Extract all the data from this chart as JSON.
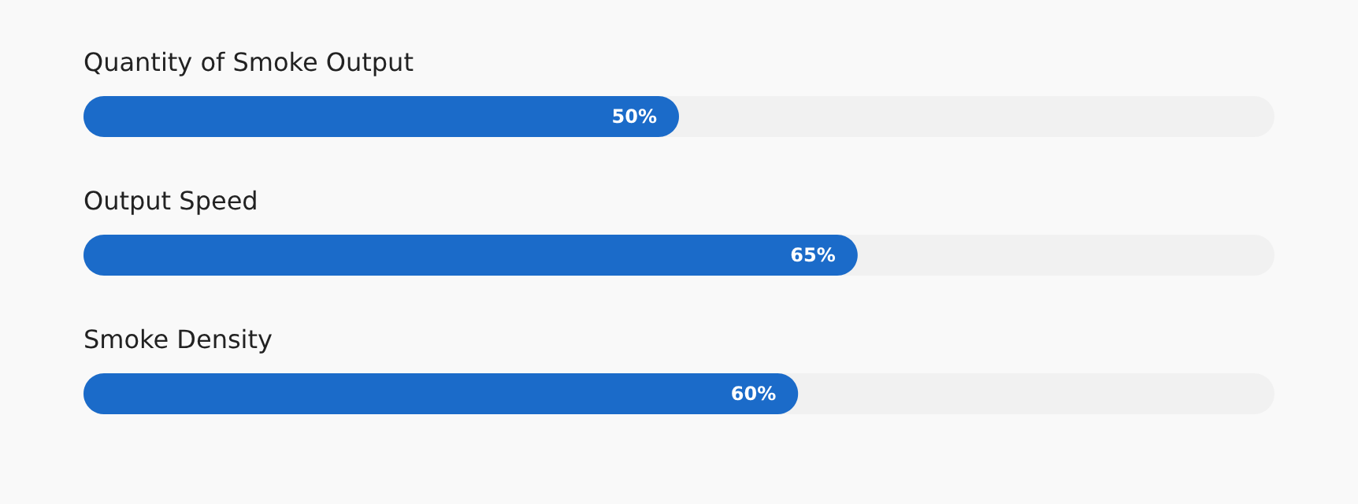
{
  "chart_data": {
    "type": "bar",
    "orientation": "horizontal",
    "categories": [
      "Quantity of Smoke Output",
      "Output Speed",
      "Smoke Density"
    ],
    "values": [
      50,
      65,
      60
    ],
    "color": "#1b6bc9",
    "xlim": [
      0,
      100
    ],
    "data_labels": true,
    "value_labels": [
      "50%",
      "65%",
      "60%"
    ]
  }
}
